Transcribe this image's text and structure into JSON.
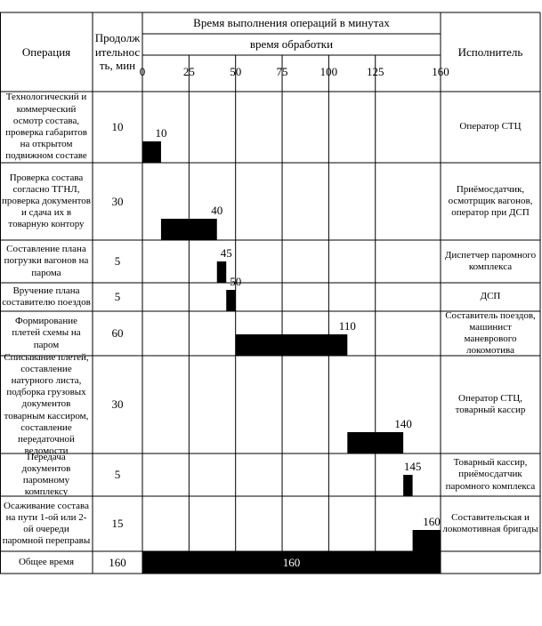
{
  "header": {
    "operation": "Операция",
    "duration": "Продолжительность, мин",
    "time_title": "Время выполнения операций в минутах",
    "processing": "время обработки",
    "executor": "Исполнитель"
  },
  "axis": {
    "xlim": [
      0,
      160
    ],
    "xticks": [
      0,
      25,
      50,
      75,
      100,
      125,
      160
    ]
  },
  "rows": [
    {
      "operation": "Технологический и коммерческий осмотр состава, проверка габаритов на открытом подвижном составе",
      "duration": 10,
      "end": 10,
      "executor": "Оператор СТЦ"
    },
    {
      "operation": "Проверка состава согласно ТГНЛ, проверка документов и сдача их в товарную контору",
      "duration": 30,
      "end": 40,
      "executor": "Приёмосдатчик, осмотрщик вагонов, оператор при ДСП"
    },
    {
      "operation": "Составление плана погрузки вагонов на парома",
      "duration": 5,
      "end": 45,
      "executor": "Диспетчер паромного комплекса"
    },
    {
      "operation": "Вручение плана составителю поездов",
      "duration": 5,
      "end": 50,
      "executor": "ДСП"
    },
    {
      "operation": "Формирование плетей схемы на паром",
      "duration": 60,
      "end": 110,
      "executor": "Составитель поездов, машинист маневрового локомотива"
    },
    {
      "operation": "Списывание плетей, составление натурного листа, подборка грузовых документов товарным кассиром, составление передаточной ведомости",
      "duration": 30,
      "end": 140,
      "executor": "Оператор СТЦ, товарный кассир"
    },
    {
      "operation": "Передача документов паромному комплексу",
      "duration": 5,
      "end": 145,
      "executor": "Товарный кассир, приёмосдатчик паромного комплекса"
    },
    {
      "operation": "Осаживание состава на пути 1-ой или 2-ой очереди паромной переправы",
      "duration": 15,
      "end": 160,
      "executor": "Составительская и локомотивная бригады"
    }
  ],
  "total": {
    "label": "Общее время",
    "duration": 160,
    "end": 160
  }
}
